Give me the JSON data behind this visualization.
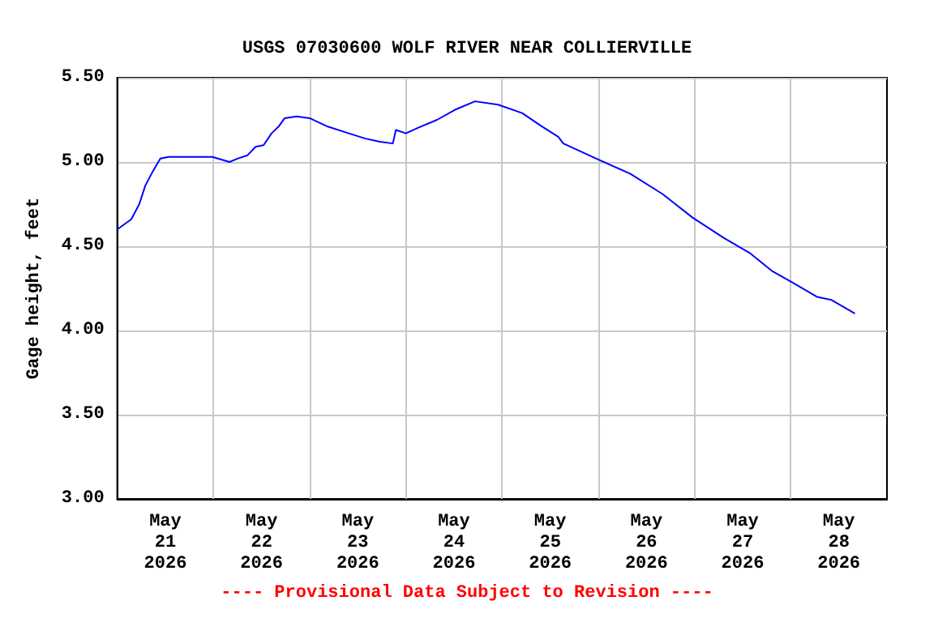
{
  "chart_data": {
    "type": "line",
    "title": "USGS 07030600 WOLF RIVER NEAR COLLIERVILLE",
    "ylabel": "Gage height, feet",
    "annotations": [
      "---- Provisional Data Subject to Revision ----"
    ],
    "x": [
      "2026-05-21T00:00",
      "2026-05-21T03:30",
      "2026-05-21T05:30",
      "2026-05-21T07:00",
      "2026-05-21T09:00",
      "2026-05-21T10:45",
      "2026-05-21T12:45",
      "2026-05-21T23:45",
      "2026-05-22T04:00",
      "2026-05-22T06:00",
      "2026-05-22T08:30",
      "2026-05-22T10:30",
      "2026-05-22T12:30",
      "2026-05-22T14:30",
      "2026-05-22T16:15",
      "2026-05-22T17:45",
      "2026-05-22T20:45",
      "2026-05-23T00:00",
      "2026-05-23T04:30",
      "2026-05-23T09:45",
      "2026-05-23T13:45",
      "2026-05-23T17:30",
      "2026-05-23T20:45",
      "2026-05-23T21:30",
      "2026-05-24T00:00",
      "2026-05-24T02:45",
      "2026-05-24T07:45",
      "2026-05-24T12:15",
      "2026-05-24T17:15",
      "2026-05-24T23:00",
      "2026-05-25T05:00",
      "2026-05-25T10:00",
      "2026-05-25T14:00",
      "2026-05-25T15:15",
      "2026-05-25T23:30",
      "2026-05-26T08:00",
      "2026-05-26T16:00",
      "2026-05-26T23:30",
      "2026-05-27T07:15",
      "2026-05-27T13:45",
      "2026-05-27T19:30",
      "2026-05-28T00:00",
      "2026-05-28T06:30",
      "2026-05-28T10:15",
      "2026-05-28T16:00"
    ],
    "series": [
      {
        "color": "#0000ff",
        "values": [
          4.6,
          4.66,
          4.75,
          4.86,
          4.95,
          5.02,
          5.03,
          5.03,
          5.0,
          5.02,
          5.04,
          5.09,
          5.1,
          5.17,
          5.21,
          5.26,
          5.27,
          5.26,
          5.21,
          5.17,
          5.14,
          5.12,
          5.11,
          5.19,
          5.17,
          5.2,
          5.25,
          5.31,
          5.36,
          5.34,
          5.29,
          5.21,
          5.15,
          5.11,
          5.02,
          4.93,
          4.81,
          4.67,
          4.55,
          4.46,
          4.35,
          4.29,
          4.2,
          4.18,
          4.1
        ]
      }
    ],
    "xlim": [
      "2026-05-21T00:00",
      "2026-05-29T00:00"
    ],
    "xticks": [
      {
        "value": "2026-05-21T12:00",
        "label": "May\n21\n2026"
      },
      {
        "value": "2026-05-22T00:00",
        "label": null
      },
      {
        "value": "2026-05-22T12:00",
        "label": "May\n22\n2026"
      },
      {
        "value": "2026-05-23T00:00",
        "label": null
      },
      {
        "value": "2026-05-23T12:00",
        "label": "May\n23\n2026"
      },
      {
        "value": "2026-05-24T00:00",
        "label": null
      },
      {
        "value": "2026-05-24T12:00",
        "label": "May\n24\n2026"
      },
      {
        "value": "2026-05-25T00:00",
        "label": null
      },
      {
        "value": "2026-05-25T12:00",
        "label": "May\n25\n2026"
      },
      {
        "value": "2026-05-26T00:00",
        "label": null
      },
      {
        "value": "2026-05-26T12:00",
        "label": "May\n26\n2026"
      },
      {
        "value": "2026-05-27T00:00",
        "label": null
      },
      {
        "value": "2026-05-27T12:00",
        "label": "May\n27\n2026"
      },
      {
        "value": "2026-05-28T00:00",
        "label": null
      },
      {
        "value": "2026-05-28T12:00",
        "label": "May\n28\n2026"
      }
    ],
    "ylim": [
      3.0,
      5.5
    ],
    "yticks": [
      {
        "value": 3.0,
        "label": "3.00"
      },
      {
        "value": 3.5,
        "label": "3.50"
      },
      {
        "value": 4.0,
        "label": "4.00"
      },
      {
        "value": 4.5,
        "label": "4.50"
      },
      {
        "value": 5.0,
        "label": "5.00"
      },
      {
        "value": 5.5,
        "label": "5.50"
      }
    ],
    "grid": true,
    "marker": "none",
    "line_style": "solid"
  }
}
